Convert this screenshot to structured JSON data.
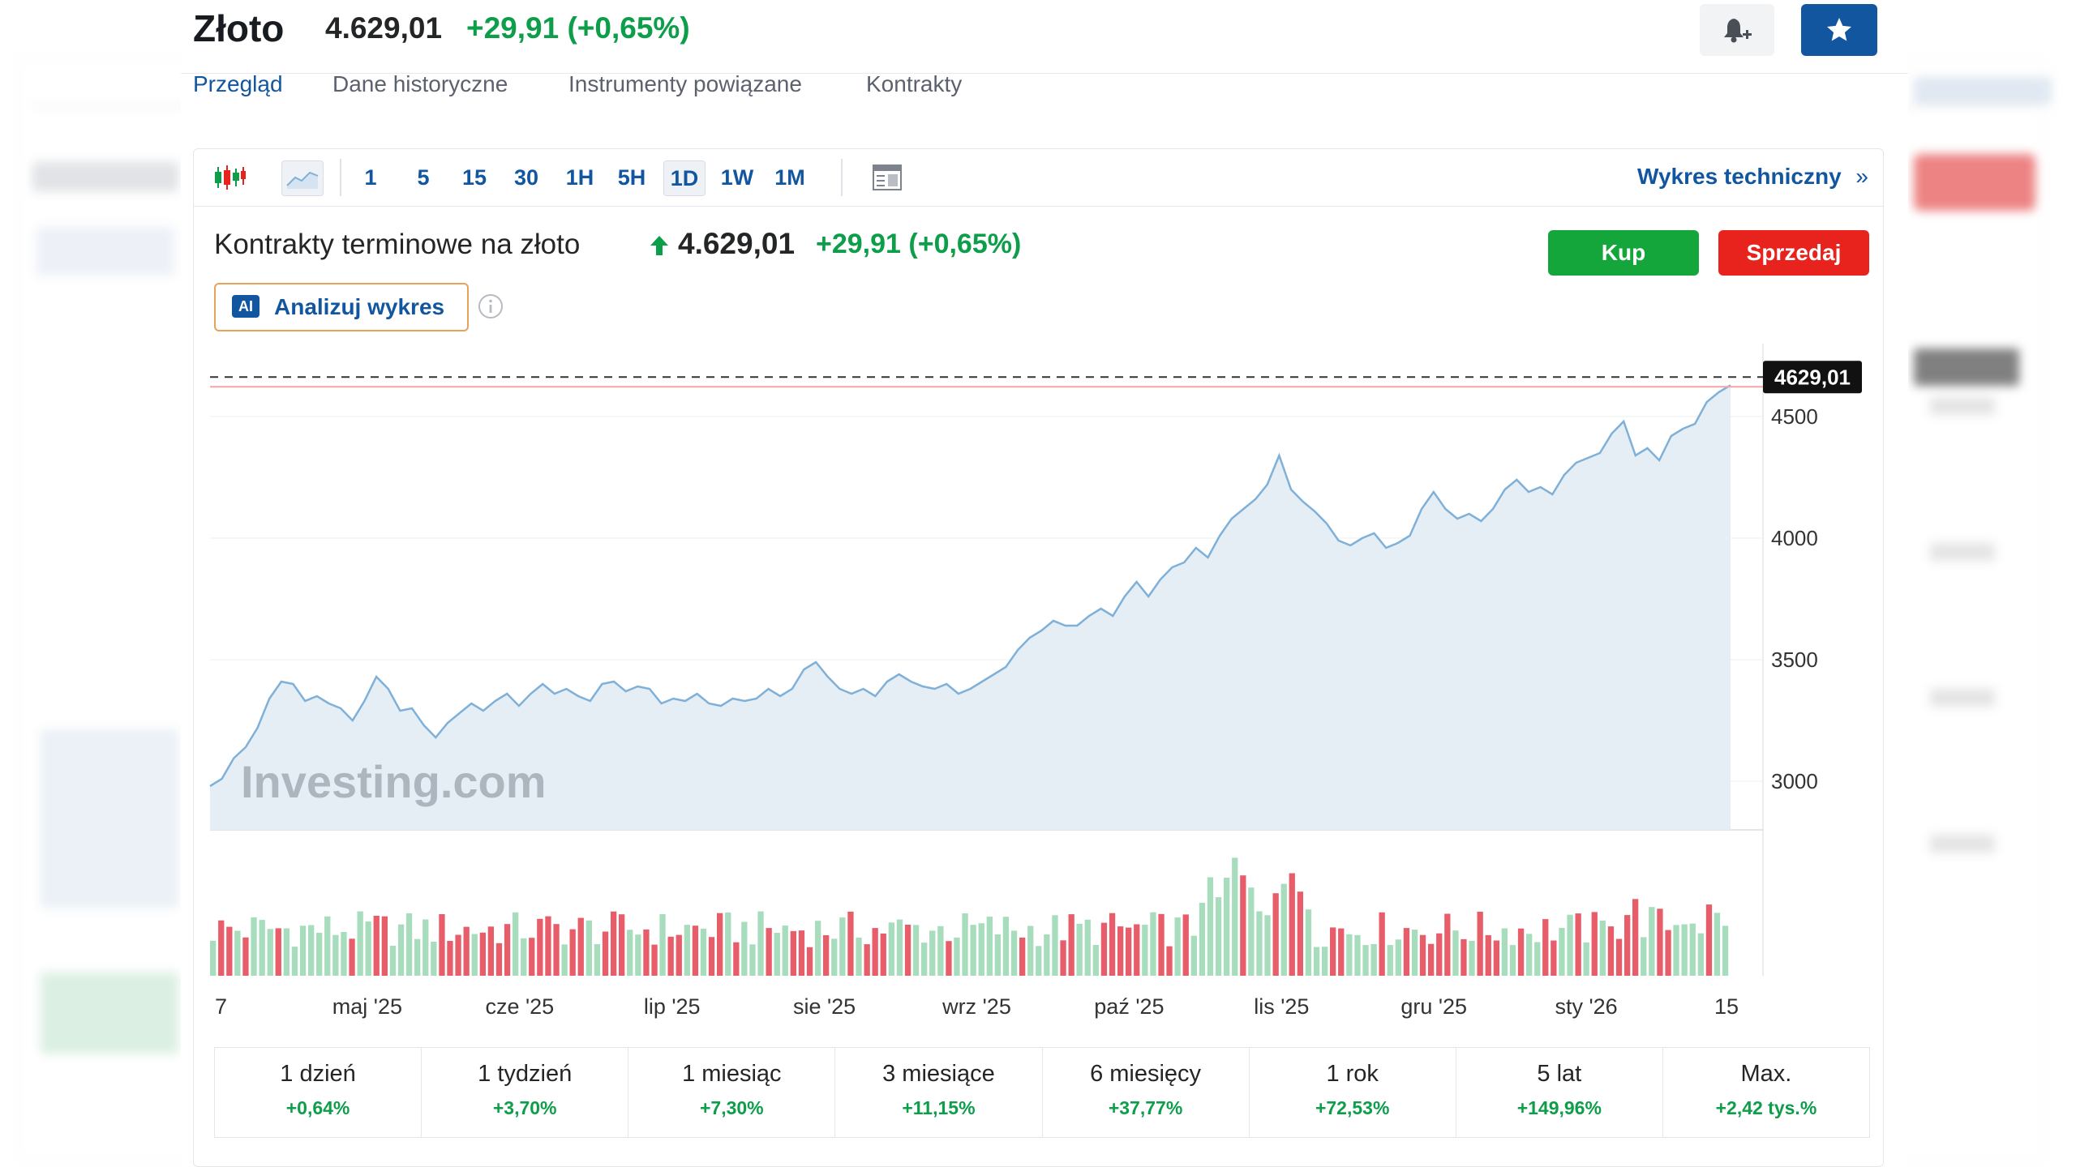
{
  "header": {
    "title": "Złoto",
    "price": "4.629,01",
    "change": "+29,91 (+0,65%)"
  },
  "tabs": [
    {
      "label": "Przegląd",
      "active": true
    },
    {
      "label": "Dane historyczne",
      "active": false
    },
    {
      "label": "Instrumenty powiązane",
      "active": false
    },
    {
      "label": "Kontrakty",
      "active": false
    }
  ],
  "toolbar": {
    "chart_type_icons": [
      "candlestick-icon",
      "area-chart-icon"
    ],
    "timeframes": [
      "1",
      "5",
      "15",
      "30",
      "1H",
      "5H",
      "1D",
      "1W",
      "1M"
    ],
    "selected_timeframe": "1D",
    "table_icon": "table-icon",
    "technical_link": "Wykres techniczny",
    "technical_link_arrow": "»"
  },
  "instrument": {
    "name": "Kontrakty terminowe na złoto",
    "price": "4.629,01",
    "change": "+29,91 (+0,65%)",
    "buy_label": "Kup",
    "sell_label": "Sprzedaj",
    "ai_badge": "AI",
    "ai_label": "Analizuj wykres"
  },
  "colors": {
    "accent": "#1256a0",
    "positive": "#0d9e4a",
    "buy": "#14a63a",
    "sell": "#e8231e",
    "line": "#7fb0d8",
    "area": "#e6eef5",
    "volume_up": "#a7dcbd",
    "volume_down": "#e85d6a"
  },
  "chart_data": {
    "type": "area",
    "last_price_label": "4629,01",
    "y_ticks": [
      "4500",
      "4000",
      "3500",
      "3000"
    ],
    "x_tick_labels": [
      "7",
      "maj '25",
      "cze '25",
      "lip '25",
      "sie '25",
      "wrz '25",
      "paź '25",
      "lis '25",
      "gru '25",
      "sty '26",
      "15"
    ],
    "ylim": [
      2800,
      4800
    ],
    "x_range": [
      "2025-04-07",
      "2026-01-15"
    ],
    "series": [
      {
        "values": [
          [
            0,
            2980
          ],
          [
            2,
            3010
          ],
          [
            4,
            3095
          ],
          [
            6,
            3140
          ],
          [
            8,
            3220
          ],
          [
            10,
            3340
          ],
          [
            12,
            3410
          ],
          [
            14,
            3400
          ],
          [
            16,
            3330
          ],
          [
            18,
            3350
          ],
          [
            20,
            3320
          ],
          [
            22,
            3300
          ],
          [
            24,
            3250
          ],
          [
            26,
            3330
          ],
          [
            28,
            3430
          ],
          [
            30,
            3380
          ],
          [
            32,
            3290
          ],
          [
            34,
            3300
          ],
          [
            36,
            3230
          ],
          [
            38,
            3180
          ],
          [
            40,
            3240
          ],
          [
            42,
            3280
          ],
          [
            44,
            3320
          ],
          [
            46,
            3290
          ],
          [
            48,
            3330
          ],
          [
            50,
            3360
          ],
          [
            52,
            3310
          ],
          [
            54,
            3360
          ],
          [
            56,
            3400
          ],
          [
            58,
            3360
          ],
          [
            60,
            3380
          ],
          [
            62,
            3350
          ],
          [
            64,
            3330
          ],
          [
            66,
            3400
          ],
          [
            68,
            3410
          ],
          [
            70,
            3370
          ],
          [
            72,
            3390
          ],
          [
            74,
            3380
          ],
          [
            76,
            3320
          ],
          [
            78,
            3340
          ],
          [
            80,
            3330
          ],
          [
            82,
            3360
          ],
          [
            84,
            3320
          ],
          [
            86,
            3310
          ],
          [
            88,
            3340
          ],
          [
            90,
            3330
          ],
          [
            92,
            3340
          ],
          [
            94,
            3380
          ],
          [
            96,
            3350
          ],
          [
            98,
            3380
          ],
          [
            100,
            3460
          ],
          [
            102,
            3490
          ],
          [
            104,
            3430
          ],
          [
            106,
            3380
          ],
          [
            108,
            3360
          ],
          [
            110,
            3380
          ],
          [
            112,
            3350
          ],
          [
            114,
            3410
          ],
          [
            116,
            3440
          ],
          [
            118,
            3410
          ],
          [
            120,
            3390
          ],
          [
            122,
            3380
          ],
          [
            124,
            3400
          ],
          [
            126,
            3360
          ],
          [
            128,
            3380
          ],
          [
            130,
            3410
          ],
          [
            132,
            3440
          ],
          [
            134,
            3470
          ],
          [
            136,
            3540
          ],
          [
            138,
            3590
          ],
          [
            140,
            3620
          ],
          [
            142,
            3660
          ],
          [
            144,
            3640
          ],
          [
            146,
            3640
          ],
          [
            148,
            3680
          ],
          [
            150,
            3710
          ],
          [
            152,
            3680
          ],
          [
            154,
            3760
          ],
          [
            156,
            3820
          ],
          [
            158,
            3760
          ],
          [
            160,
            3830
          ],
          [
            162,
            3880
          ],
          [
            164,
            3900
          ],
          [
            166,
            3960
          ],
          [
            168,
            3920
          ],
          [
            170,
            4010
          ],
          [
            172,
            4080
          ],
          [
            174,
            4120
          ],
          [
            176,
            4160
          ],
          [
            178,
            4220
          ],
          [
            180,
            4340
          ],
          [
            182,
            4200
          ],
          [
            184,
            4150
          ],
          [
            186,
            4110
          ],
          [
            188,
            4060
          ],
          [
            190,
            3990
          ],
          [
            192,
            3970
          ],
          [
            194,
            4000
          ],
          [
            196,
            4020
          ],
          [
            198,
            3960
          ],
          [
            200,
            3980
          ],
          [
            202,
            4010
          ],
          [
            204,
            4120
          ],
          [
            206,
            4190
          ],
          [
            208,
            4120
          ],
          [
            210,
            4080
          ],
          [
            212,
            4100
          ],
          [
            214,
            4070
          ],
          [
            216,
            4120
          ],
          [
            218,
            4200
          ],
          [
            220,
            4240
          ],
          [
            222,
            4190
          ],
          [
            224,
            4210
          ],
          [
            226,
            4180
          ],
          [
            228,
            4260
          ],
          [
            230,
            4310
          ],
          [
            232,
            4330
          ],
          [
            234,
            4350
          ],
          [
            236,
            4430
          ],
          [
            238,
            4480
          ],
          [
            240,
            4340
          ],
          [
            242,
            4370
          ],
          [
            244,
            4320
          ],
          [
            246,
            4420
          ],
          [
            248,
            4450
          ],
          [
            250,
            4470
          ],
          [
            252,
            4560
          ],
          [
            254,
            4600
          ],
          [
            256,
            4629.01
          ]
        ]
      }
    ],
    "volume_direction_pattern": "mixed",
    "watermark": "Investing.com"
  },
  "period_returns": [
    {
      "label": "1 dzień",
      "value": "+0,64%"
    },
    {
      "label": "1 tydzień",
      "value": "+3,70%"
    },
    {
      "label": "1 miesiąc",
      "value": "+7,30%"
    },
    {
      "label": "3 miesiące",
      "value": "+11,15%"
    },
    {
      "label": "6 miesięcy",
      "value": "+37,77%"
    },
    {
      "label": "1 rok",
      "value": "+72,53%"
    },
    {
      "label": "5 lat",
      "value": "+149,96%"
    },
    {
      "label": "Max.",
      "value": "+2,42 tys.%"
    }
  ]
}
